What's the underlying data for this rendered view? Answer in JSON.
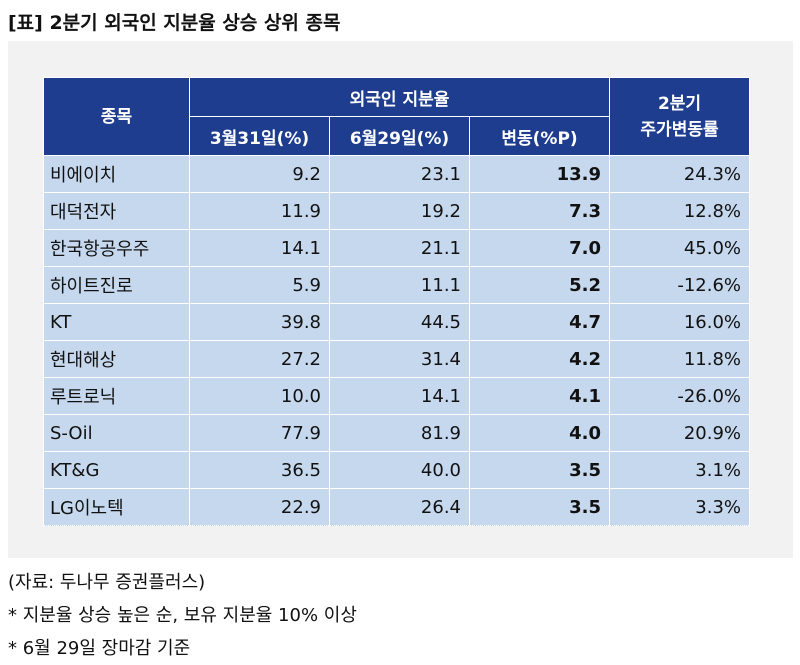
{
  "title": "[표] 2분기 외국인 지분율 상승 상위 종목",
  "table": {
    "header_stock": "종목",
    "header_group": "외국인 지분율",
    "header_mar": "3월31일(%)",
    "header_jun": "6월29일(%)",
    "header_change": "변동(%P)",
    "header_price_line1": "2분기",
    "header_price_line2": "주가변동률",
    "rows": [
      {
        "name": "비에이치",
        "mar": "9.2",
        "jun": "23.1",
        "change": "13.9",
        "price": "24.3%"
      },
      {
        "name": "대덕전자",
        "mar": "11.9",
        "jun": "19.2",
        "change": "7.3",
        "price": "12.8%"
      },
      {
        "name": "한국항공우주",
        "mar": "14.1",
        "jun": "21.1",
        "change": "7.0",
        "price": "45.0%"
      },
      {
        "name": "하이트진로",
        "mar": "5.9",
        "jun": "11.1",
        "change": "5.2",
        "price": "-12.6%"
      },
      {
        "name": "KT",
        "mar": "39.8",
        "jun": "44.5",
        "change": "4.7",
        "price": "16.0%"
      },
      {
        "name": "현대해상",
        "mar": "27.2",
        "jun": "31.4",
        "change": "4.2",
        "price": "11.8%"
      },
      {
        "name": "루트로닉",
        "mar": "10.0",
        "jun": "14.1",
        "change": "4.1",
        "price": "-26.0%"
      },
      {
        "name": "S-Oil",
        "mar": "77.9",
        "jun": "81.9",
        "change": "4.0",
        "price": "20.9%"
      },
      {
        "name": "KT&G",
        "mar": "36.5",
        "jun": "40.0",
        "change": "3.5",
        "price": "3.1%"
      },
      {
        "name": "LG이노텍",
        "mar": "22.9",
        "jun": "26.4",
        "change": "3.5",
        "price": "3.3%"
      }
    ]
  },
  "notes": [
    "(자료: 두나무 증권플러스)",
    "* 지분율 상승 높은 순, 보유 지분율 10% 이상",
    "* 6월 29일 장마감 기준"
  ],
  "colors": {
    "header_bg": "#1f3d8f",
    "cell_bg": "#c6d8ee",
    "panel_bg": "#f2f2f2"
  }
}
